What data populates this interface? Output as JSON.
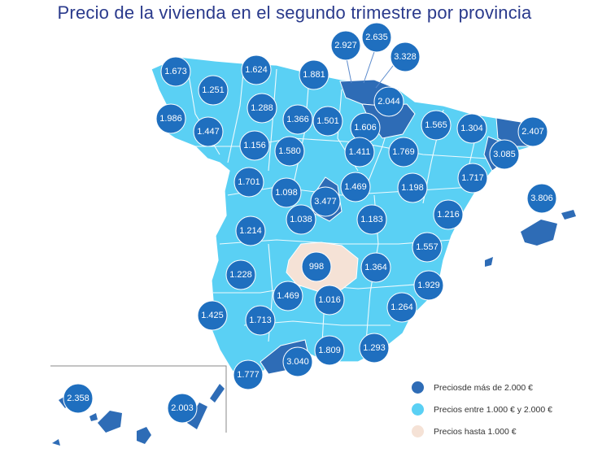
{
  "title": "Precio de la vivienda en el segundo trimestre por provincia",
  "colors": {
    "high": "#2e6cb6",
    "mid": "#5ad0f4",
    "low": "#f5e2d6",
    "badge": "#1f6fbf",
    "border": "#ffffff"
  },
  "provinces": [
    {
      "value": "1.673"
    },
    {
      "value": "1.624"
    },
    {
      "value": "1.881"
    },
    {
      "value": "2.927"
    },
    {
      "value": "2.635"
    },
    {
      "value": "3.328"
    },
    {
      "value": "1.251"
    },
    {
      "value": "2.044"
    },
    {
      "value": "1.288"
    },
    {
      "value": "1.986"
    },
    {
      "value": "1.366"
    },
    {
      "value": "1.501"
    },
    {
      "value": "1.606"
    },
    {
      "value": "1.565"
    },
    {
      "value": "1.304"
    },
    {
      "value": "2.407"
    },
    {
      "value": "1.447"
    },
    {
      "value": "1.156"
    },
    {
      "value": "1.580"
    },
    {
      "value": "1.411"
    },
    {
      "value": "1.769"
    },
    {
      "value": "3.085"
    },
    {
      "value": "1.701"
    },
    {
      "value": "1.098"
    },
    {
      "value": "3.477"
    },
    {
      "value": "1.469"
    },
    {
      "value": "1.198"
    },
    {
      "value": "1.717"
    },
    {
      "value": "3.806"
    },
    {
      "value": "1.038"
    },
    {
      "value": "1.183"
    },
    {
      "value": "1.216"
    },
    {
      "value": "1.214"
    },
    {
      "value": "1.557"
    },
    {
      "value": "998"
    },
    {
      "value": "1.364"
    },
    {
      "value": "1.228"
    },
    {
      "value": "1.929"
    },
    {
      "value": "1.469"
    },
    {
      "value": "1.016"
    },
    {
      "value": "1.264"
    },
    {
      "value": "1.425"
    },
    {
      "value": "1.713"
    },
    {
      "value": "3.040"
    },
    {
      "value": "1.809"
    },
    {
      "value": "1.293"
    },
    {
      "value": "1.777"
    },
    {
      "value": "2.358"
    },
    {
      "value": "2.003"
    }
  ],
  "legend": [
    {
      "label": "Preciosde más de 2.000 €",
      "color": "#2e6cb6"
    },
    {
      "label": "Precios entre 1.000 € y 2.000 €",
      "color": "#5ad0f4"
    },
    {
      "label": "Precios hasta 1.000 €",
      "color": "#f5e2d6"
    }
  ]
}
